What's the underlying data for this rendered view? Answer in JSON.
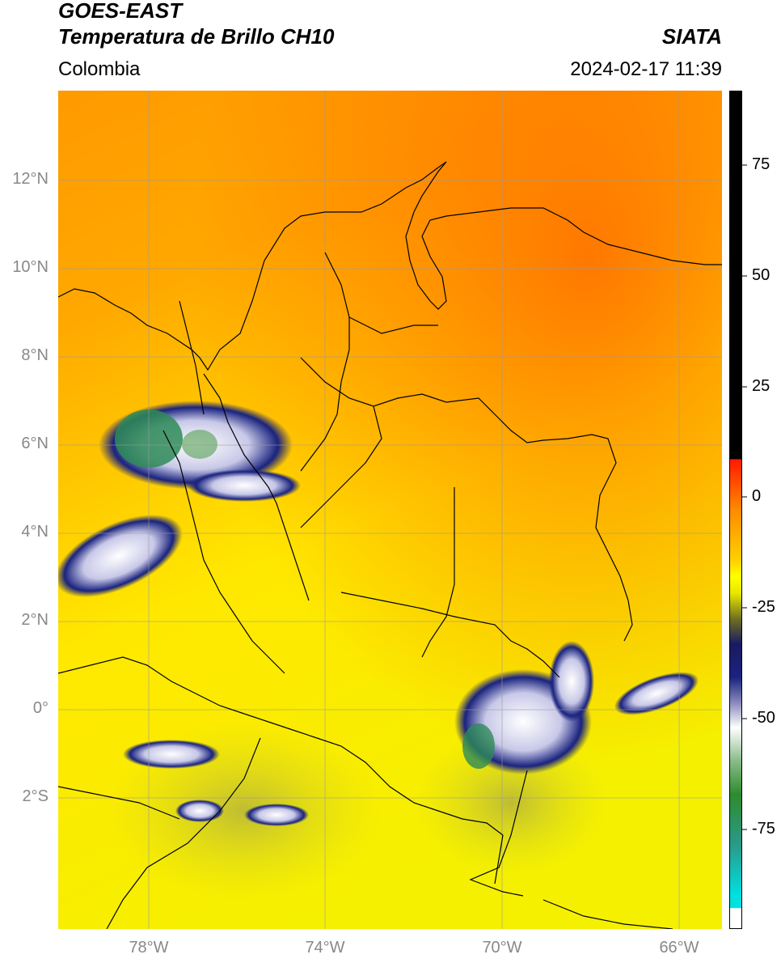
{
  "header": {
    "satellite": "GOES-EAST",
    "product": "Temperatura de Brillo CH10",
    "region": "Colombia",
    "agency": "SIATA",
    "datetime": "2024-02-17 11:39"
  },
  "axes": {
    "lat_ticks": [
      "12°N",
      "10°N",
      "8°N",
      "6°N",
      "4°N",
      "2°N",
      "0°",
      "2°S"
    ],
    "lon_ticks": [
      "78°W",
      "74°W",
      "70°W",
      "66°W"
    ]
  },
  "colorbar": {
    "ticks": [
      "75",
      "50",
      "25",
      "0",
      "-25",
      "-50",
      "-75"
    ]
  },
  "colors": {
    "warm_top": "#ff7a00",
    "mid": "#ffb000",
    "cool": "#ffee00",
    "cloud_dark": "#1a237e",
    "cloud_white": "#ffffff",
    "cloud_green": "#2e8b57",
    "colorbar_black": "#000000",
    "colorbar_red": "#ff1a00"
  }
}
